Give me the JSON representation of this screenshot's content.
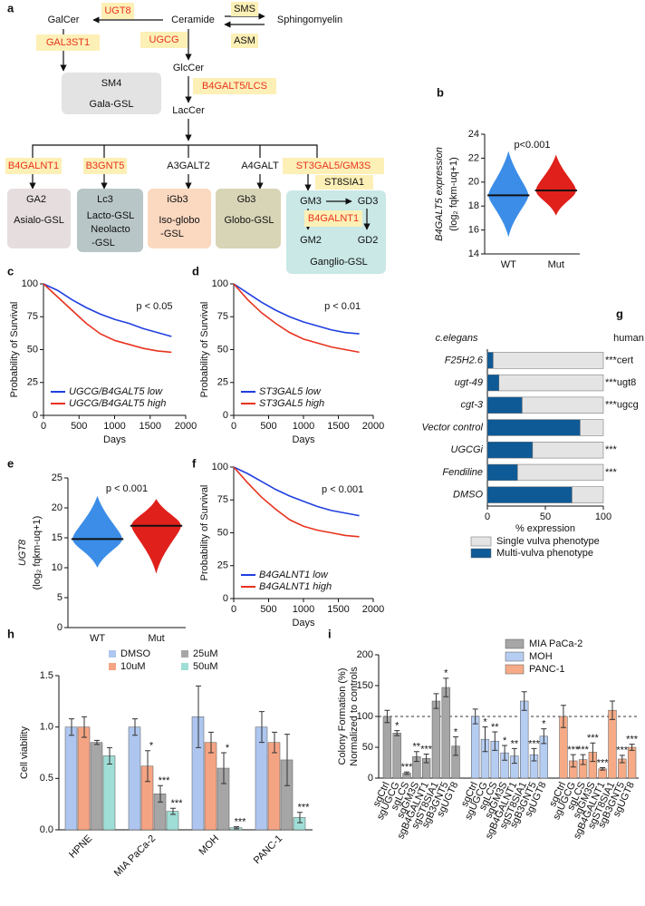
{
  "diagram": {
    "panel": "a",
    "GalCer": "GalCer",
    "UGT8": "UGT8",
    "Ceramide": "Ceramide",
    "SMS": "SMS",
    "Sphingomyelin": "Sphingomyelin",
    "ASM": "ASM",
    "GAL3ST1": "GAL3ST1",
    "UGCG": "UGCG",
    "GlcCer": "GlcCer",
    "SM4": "SM4",
    "Gala_GSL": "Gala-GSL",
    "B4GALT5_LCS": "B4GALT5/LCS",
    "LacCer": "LacCer",
    "enzymes": [
      "B4GALNT1",
      "B3GNT5",
      "A3GALT2",
      "A4GALT",
      "ST3GAL5/GM3S"
    ],
    "GA2": "GA2",
    "Asialo_GSL": "Asialo-GSL",
    "Lc3": "Lc3",
    "Lacto": [
      "Lacto-GSL",
      "Neolacto",
      "-GSL"
    ],
    "iGb3": "iGb3",
    "Isoglobo": [
      "Iso-globo",
      "-GSL"
    ],
    "Gb3": "Gb3",
    "Globo_GSL": "Globo-GSL",
    "GM3": "GM3",
    "GD3": "GD3",
    "ST8SIA1": "ST8SIA1",
    "B4GALNT1_2": "B4GALNT1",
    "GM2": "GM2",
    "GD2": "GD2",
    "Ganglio_GSL": "Ganglio-GSL"
  },
  "chart_data": [
    {
      "panel": "b",
      "type": "violin",
      "y_label": "B4GALT5 expression",
      "y_label_2": "(log₂ fqkm-uq+1)",
      "annotation": "p<0.001",
      "groups": [
        {
          "name": "WT",
          "color": "#3b8de8",
          "min": 15.4,
          "max": 22.6,
          "median": 18.9
        },
        {
          "name": "Mut",
          "color": "#e0201b",
          "min": 17.2,
          "max": 22.3,
          "median": 19.3
        }
      ],
      "ylim": [
        14,
        24
      ],
      "yticks": [
        14,
        16,
        18,
        20,
        22,
        24
      ]
    },
    {
      "panel": "c",
      "type": "line",
      "annotation": "p < 0.05",
      "x_label": "Days",
      "y_label": "Probability of Survival",
      "x": [
        0,
        200,
        400,
        600,
        800,
        1000,
        1200,
        1400,
        1600,
        1800
      ],
      "series": [
        {
          "name": "UGCG/B4GALT5 low",
          "color": "#1f3fe0",
          "values": [
            100,
            95,
            88,
            82,
            77,
            73,
            70,
            66,
            63,
            60
          ]
        },
        {
          "name": "UGCG/B4GALT5 high",
          "color": "#e8321e",
          "values": [
            100,
            90,
            80,
            70,
            62,
            57,
            54,
            51,
            49,
            48
          ]
        }
      ],
      "xlim": [
        0,
        2000
      ],
      "xticks": [
        0,
        500,
        1000,
        1500,
        2000
      ],
      "ylim": [
        0,
        100
      ],
      "yticks": [
        0,
        25,
        50,
        75,
        100
      ],
      "legend": "lower left"
    },
    {
      "panel": "d",
      "type": "line",
      "annotation": "p < 0.01",
      "x_label": "Days",
      "y_label": "Probability of Survival",
      "x": [
        0,
        200,
        400,
        600,
        800,
        1000,
        1200,
        1400,
        1600,
        1800
      ],
      "series": [
        {
          "name": "ST3GAL5 low",
          "color": "#1f3fe0",
          "values": [
            100,
            93,
            86,
            80,
            75,
            71,
            68,
            65,
            63,
            62
          ]
        },
        {
          "name": "ST3GAL5 high",
          "color": "#e8321e",
          "values": [
            100,
            88,
            78,
            70,
            63,
            58,
            55,
            52,
            50,
            48
          ]
        }
      ],
      "xlim": [
        0,
        2000
      ],
      "xticks": [
        0,
        500,
        1000,
        1500,
        2000
      ],
      "ylim": [
        0,
        100
      ],
      "yticks": [
        0,
        25,
        50,
        75,
        100
      ],
      "legend": "lower left"
    },
    {
      "panel": "e",
      "type": "violin",
      "y_label": "UGT8",
      "y_label_2": "(log₂ fqkm-uq+1)",
      "annotation": "p < 0.001",
      "groups": [
        {
          "name": "WT",
          "color": "#3b8de8",
          "min": 10,
          "max": 22,
          "median": 14.8
        },
        {
          "name": "Mut",
          "color": "#e0201b",
          "min": 9,
          "max": 21.5,
          "median": 17
        }
      ],
      "ylim": [
        0,
        25
      ],
      "yticks": [
        0,
        5,
        10,
        15,
        20,
        25
      ]
    },
    {
      "panel": "f",
      "type": "line",
      "annotation": "p < 0.001",
      "x_label": "Days",
      "y_label": "Probability of Survival",
      "x": [
        0,
        200,
        400,
        600,
        800,
        1000,
        1200,
        1400,
        1600,
        1800
      ],
      "series": [
        {
          "name": "B4GALNT1 low",
          "color": "#1f3fe0",
          "values": [
            100,
            95,
            89,
            83,
            78,
            74,
            70,
            67,
            65,
            63
          ]
        },
        {
          "name": "B4GALNT1 high",
          "color": "#e8321e",
          "values": [
            100,
            88,
            77,
            68,
            60,
            55,
            52,
            50,
            48,
            47
          ]
        }
      ],
      "xlim": [
        0,
        2000
      ],
      "xticks": [
        0,
        500,
        1000,
        1500,
        2000
      ],
      "ylim": [
        0,
        100
      ],
      "yticks": [
        0,
        25,
        50,
        75,
        100
      ],
      "legend": "lower left"
    },
    {
      "panel": "g",
      "type": "stacked_bar_h",
      "row_header": "c.elegans",
      "annotation_header": "human",
      "x_label": "% expression",
      "categories": [
        "F25H2.6",
        "ugt-49",
        "cgt-3",
        "Vector control",
        "UGCGi",
        "Fendiline",
        "DMSO"
      ],
      "series": [
        {
          "name": "Multi-vulva phenotype",
          "color": "#0e5a96",
          "values": [
            5,
            10,
            30,
            80,
            39,
            26,
            73
          ]
        },
        {
          "name": "Single vulva phenotype",
          "color": "#e4e4e4",
          "values": [
            95,
            90,
            70,
            20,
            61,
            74,
            27
          ]
        }
      ],
      "annotations": [
        "***cert",
        "***ugt8",
        "***ugcg",
        null,
        "***",
        "***",
        null
      ],
      "xlim": [
        0,
        100
      ],
      "xticks": [
        0,
        50,
        100
      ]
    },
    {
      "panel": "h",
      "type": "grouped_bar",
      "y_label": "Cell viability",
      "categories": [
        "HPNE",
        "MIA PaCa-2",
        "MOH",
        "PANC-1"
      ],
      "series": [
        {
          "name": "DMSO",
          "color": "#aec6ef",
          "values": [
            1.0,
            1.0,
            1.1,
            1.0
          ],
          "errors": [
            0.08,
            0.08,
            0.3,
            0.15
          ],
          "significance": [
            null,
            null,
            null,
            null
          ]
        },
        {
          "name": "10uM",
          "color": "#f5a483",
          "values": [
            1.0,
            0.62,
            0.85,
            0.85
          ],
          "errors": [
            0.1,
            0.15,
            0.1,
            0.1
          ],
          "significance": [
            null,
            "*",
            null,
            null
          ]
        },
        {
          "name": "25uM",
          "color": "#a6a6a6",
          "values": [
            0.85,
            0.35,
            0.6,
            0.68
          ],
          "errors": [
            0.02,
            0.08,
            0.15,
            0.25
          ],
          "significance": [
            null,
            "***",
            "*",
            null
          ]
        },
        {
          "name": "50uM",
          "color": "#9fded6",
          "values": [
            0.72,
            0.18,
            0.02,
            0.12
          ],
          "errors": [
            0.08,
            0.03,
            0.01,
            0.05
          ],
          "significance": [
            null,
            "***",
            "***",
            "***"
          ]
        }
      ],
      "ylim": [
        0,
        1.5
      ],
      "yticks": [
        {
          "value": 0,
          "label": "0.0"
        },
        0.5,
        {
          "value": 1,
          "label": "1.0"
        },
        1.5
      ]
    },
    {
      "panel": "i",
      "type": "block_bar",
      "y_label": "Colony Formation (%)",
      "y_label_2": "Normalized to controls",
      "categories": [
        "sgCtrl",
        "sgUGCG",
        "sgLCS",
        "sgGM3S",
        "sgB4GALNT1",
        "sgST8SIA1",
        "sgB3GNT5",
        "sgUGT8"
      ],
      "series": [
        {
          "name": "MIA PaCa-2",
          "color": "#a6a6a6",
          "values": [
            100,
            73,
            8,
            35,
            32,
            125,
            147,
            52
          ],
          "errors": [
            10,
            4,
            2,
            8,
            7,
            12,
            15,
            15
          ],
          "significance": [
            null,
            "*",
            "***",
            "**",
            "***",
            null,
            "*",
            "*"
          ]
        },
        {
          "name": "MOH",
          "color": "#b6cdf2",
          "values": [
            100,
            63,
            60,
            41,
            36,
            125,
            38,
            68
          ],
          "errors": [
            12,
            20,
            15,
            12,
            12,
            15,
            10,
            12
          ],
          "significance": [
            null,
            "*",
            "**",
            "*",
            "**",
            null,
            "***",
            "*"
          ]
        },
        {
          "name": "PANC-1",
          "color": "#f6ab86",
          "values": [
            100,
            28,
            30,
            42,
            15,
            110,
            31,
            50
          ],
          "errors": [
            18,
            10,
            8,
            15,
            2,
            15,
            6,
            5
          ],
          "significance": [
            null,
            "***",
            "***",
            "***",
            "***",
            null,
            "***",
            "***"
          ]
        }
      ],
      "reference_line": 100,
      "ylim": [
        0,
        200
      ],
      "yticks": [
        0,
        50,
        100,
        150,
        200
      ]
    }
  ]
}
